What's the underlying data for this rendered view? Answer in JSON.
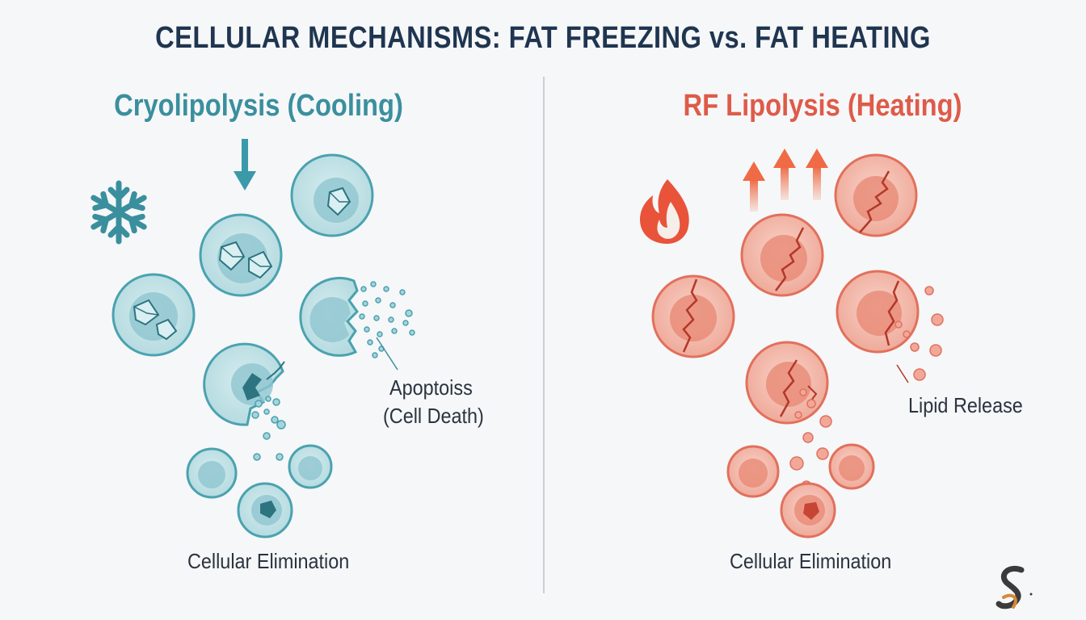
{
  "title": "CELLULAR MECHANISMS: FAT FREEZING vs. FAT HEATING",
  "cooling": {
    "heading": "Cryolipolysis (Cooling)",
    "annotation_line1": "Apoptoiss",
    "annotation_line2": "(Cell Death)",
    "caption": "Cellular Elimination",
    "icon": "snowflake-icon",
    "color": "#3a8f9e"
  },
  "heating": {
    "heading": "RF Lipolysis (Heating)",
    "annotation": "Lipid Release",
    "caption": "Cellular Elimination",
    "icon": "flame-icon",
    "color": "#de5b49"
  },
  "logo": "brand-logo-icon"
}
